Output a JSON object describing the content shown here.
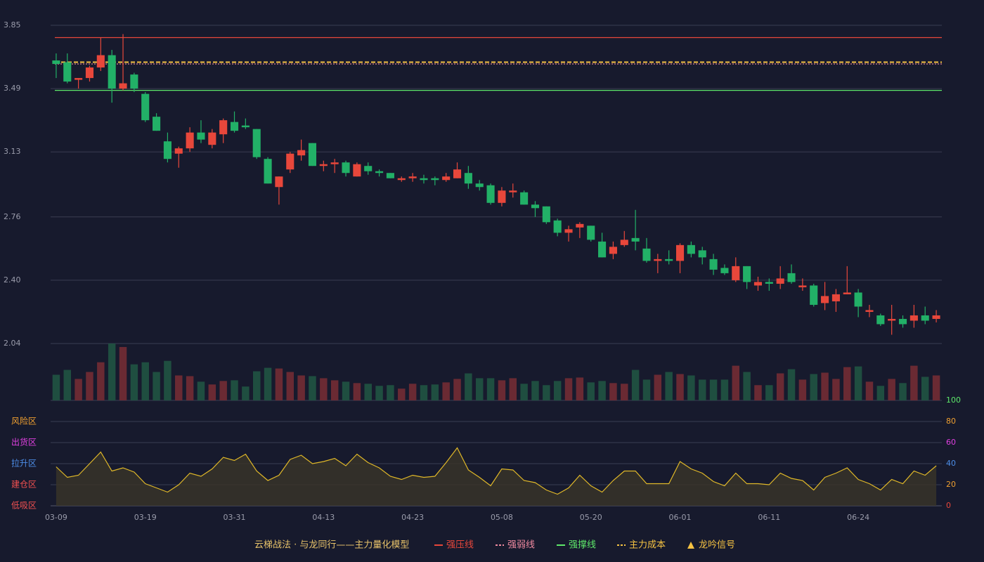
{
  "chart_data": {
    "type": "candlestick",
    "categories": [
      "03-09",
      null,
      null,
      null,
      null,
      null,
      null,
      null,
      "03-19",
      null,
      null,
      null,
      null,
      null,
      null,
      null,
      "03-31",
      null,
      null,
      null,
      null,
      null,
      null,
      null,
      "04-13",
      null,
      null,
      null,
      null,
      null,
      null,
      null,
      "04-23",
      null,
      null,
      null,
      null,
      null,
      null,
      null,
      "05-08",
      null,
      null,
      null,
      null,
      null,
      null,
      null,
      "05-20",
      null,
      null,
      null,
      null,
      null,
      null,
      null,
      "06-01",
      null,
      null,
      null,
      null,
      null,
      null,
      null,
      "06-11",
      null,
      null,
      null,
      null,
      null,
      null,
      null,
      "06-24",
      null,
      null,
      null,
      null,
      null,
      null,
      null
    ],
    "open": [
      3.65,
      3.64,
      3.54,
      3.55,
      3.61,
      3.68,
      3.49,
      3.57,
      3.46,
      3.33,
      3.19,
      3.12,
      3.15,
      3.24,
      3.17,
      3.23,
      3.3,
      3.28,
      3.26,
      3.09,
      2.93,
      3.03,
      3.11,
      3.18,
      3.05,
      3.06,
      3.07,
      2.99,
      3.05,
      3.02,
      3.01,
      2.97,
      2.98,
      2.98,
      2.98,
      2.97,
      2.98,
      3.01,
      2.95,
      2.94,
      2.84,
      2.9,
      2.9,
      2.83,
      2.82,
      2.74,
      2.67,
      2.7,
      2.71,
      2.62,
      2.55,
      2.6,
      2.64,
      2.58,
      2.51,
      2.52,
      2.51,
      2.6,
      2.57,
      2.52,
      2.47,
      2.4,
      2.48,
      2.37,
      2.39,
      2.38,
      2.44,
      2.36,
      2.37,
      2.27,
      2.28,
      2.32,
      2.33,
      2.22,
      2.2,
      2.17,
      2.18,
      2.17,
      2.2,
      2.18
    ],
    "high": [
      3.69,
      3.69,
      3.55,
      3.62,
      3.78,
      3.71,
      3.8,
      3.58,
      3.47,
      3.35,
      3.24,
      3.16,
      3.27,
      3.31,
      3.26,
      3.32,
      3.36,
      3.32,
      3.26,
      3.1,
      2.99,
      3.13,
      3.2,
      3.18,
      3.08,
      3.09,
      3.08,
      3.07,
      3.07,
      3.03,
      3.01,
      2.99,
      3.01,
      3.0,
      2.99,
      3.01,
      3.07,
      3.05,
      2.97,
      2.95,
      2.93,
      2.95,
      2.91,
      2.85,
      2.82,
      2.75,
      2.71,
      2.73,
      2.71,
      2.67,
      2.62,
      2.68,
      2.8,
      2.64,
      2.55,
      2.57,
      2.61,
      2.62,
      2.59,
      2.55,
      2.49,
      2.53,
      2.48,
      2.42,
      2.41,
      2.48,
      2.49,
      2.41,
      2.38,
      2.39,
      2.35,
      2.48,
      2.35,
      2.26,
      2.21,
      2.26,
      2.2,
      2.26,
      2.25,
      2.23
    ],
    "low": [
      3.55,
      3.52,
      3.49,
      3.53,
      3.59,
      3.41,
      3.48,
      3.47,
      3.3,
      3.25,
      3.07,
      3.04,
      3.13,
      3.18,
      3.15,
      3.18,
      3.24,
      3.26,
      3.09,
      2.95,
      2.83,
      3.01,
      3.08,
      3.05,
      3.02,
      3.01,
      2.99,
      2.99,
      3.0,
      2.99,
      2.98,
      2.96,
      2.96,
      2.95,
      2.94,
      2.96,
      2.98,
      2.92,
      2.91,
      2.83,
      2.82,
      2.87,
      2.83,
      2.76,
      2.72,
      2.65,
      2.62,
      2.64,
      2.62,
      2.53,
      2.52,
      2.59,
      2.57,
      2.5,
      2.44,
      2.49,
      2.44,
      2.53,
      2.49,
      2.43,
      2.43,
      2.39,
      2.35,
      2.34,
      2.34,
      2.35,
      2.38,
      2.34,
      2.25,
      2.23,
      2.22,
      2.32,
      2.19,
      2.19,
      2.14,
      2.09,
      2.13,
      2.13,
      2.15,
      2.16
    ],
    "close": [
      3.63,
      3.53,
      3.55,
      3.61,
      3.68,
      3.49,
      3.52,
      3.49,
      3.31,
      3.25,
      3.09,
      3.15,
      3.24,
      3.2,
      3.24,
      3.31,
      3.25,
      3.27,
      3.1,
      2.95,
      2.99,
      3.12,
      3.14,
      3.05,
      3.06,
      3.07,
      3.01,
      3.06,
      3.02,
      3.01,
      2.98,
      2.98,
      2.99,
      2.97,
      2.97,
      2.99,
      3.03,
      2.95,
      2.93,
      2.84,
      2.91,
      2.91,
      2.83,
      2.81,
      2.73,
      2.67,
      2.69,
      2.72,
      2.63,
      2.53,
      2.59,
      2.63,
      2.62,
      2.51,
      2.52,
      2.51,
      2.6,
      2.55,
      2.53,
      2.46,
      2.44,
      2.48,
      2.39,
      2.39,
      2.38,
      2.41,
      2.39,
      2.37,
      2.26,
      2.31,
      2.32,
      2.33,
      2.25,
      2.23,
      2.15,
      2.18,
      2.15,
      2.2,
      2.17,
      2.2
    ],
    "volume": [
      37,
      44,
      31,
      41,
      55,
      82,
      77,
      52,
      55,
      41,
      57,
      36,
      35,
      27,
      23,
      28,
      29,
      20,
      42,
      47,
      46,
      41,
      36,
      35,
      32,
      29,
      27,
      25,
      24,
      21,
      22,
      17,
      24,
      22,
      23,
      26,
      31,
      39,
      32,
      32,
      29,
      32,
      24,
      28,
      22,
      28,
      32,
      33,
      26,
      28,
      25,
      24,
      44,
      30,
      37,
      41,
      38,
      36,
      30,
      30,
      30,
      50,
      41,
      22,
      22,
      39,
      45,
      30,
      38,
      40,
      31,
      48,
      49,
      27,
      21,
      31,
      25,
      50,
      34,
      36
    ],
    "up_color": "#e8473b",
    "down_color": "#22b067",
    "volume_up_color": "#6a2a33",
    "volume_down_color": "#1f4e40",
    "ylim": [
      2.04,
      3.85
    ],
    "yticks": [
      3.85,
      3.49,
      3.13,
      2.76,
      {
        "value": 2.4,
        "label": "2.40"
      },
      2.04
    ],
    "grid": true,
    "lines": [
      {
        "name": "强压线",
        "value": 3.78,
        "color": "#e8473b",
        "style": "solid"
      },
      {
        "name": "强弱线",
        "value": 3.63,
        "color": "#f08aa0",
        "style": "dotted"
      },
      {
        "name": "强撑线",
        "value": 3.48,
        "color": "#5ee86a",
        "style": "solid"
      },
      {
        "name": "主力成本",
        "value": 3.64,
        "color": "#f5c242",
        "style": "dashed"
      }
    ],
    "signal": {
      "name": "龙吟信号",
      "color": "#f5c242"
    },
    "legend_title": "云梯战法 · 与龙同行——主力量化模型",
    "oscillator": {
      "values": [
        37,
        27,
        29,
        40,
        51,
        33,
        36,
        32,
        21,
        17,
        13,
        20,
        31,
        28,
        35,
        46,
        43,
        49,
        33,
        24,
        29,
        44,
        48,
        40,
        42,
        45,
        38,
        49,
        41,
        36,
        28,
        25,
        29,
        27,
        28,
        41,
        55,
        34,
        27,
        19,
        35,
        34,
        24,
        22,
        15,
        11,
        17,
        29,
        19,
        13,
        24,
        33,
        33,
        21,
        21,
        21,
        42,
        35,
        31,
        23,
        19,
        31,
        21,
        21,
        20,
        31,
        26,
        24,
        15,
        27,
        31,
        36,
        25,
        21,
        15,
        25,
        21,
        33,
        29,
        38
      ],
      "color": "#e0b828",
      "fill": "#3a3428",
      "ylim": [
        0,
        100
      ],
      "yticks": [
        0,
        20,
        40,
        60,
        80,
        100
      ],
      "ytick_colors": [
        "#e8473b",
        "#f0a030",
        "#4d8ee8",
        "#e040e0",
        "#f0a030",
        "#5ee86a"
      ],
      "zones": [
        {
          "name": "风险区",
          "value": 80,
          "color": "#f0a030"
        },
        {
          "name": "出货区",
          "value": 60,
          "color": "#e040e0"
        },
        {
          "name": "拉升区",
          "value": 40,
          "color": "#4d8ee8"
        },
        {
          "name": "建仓区",
          "value": 20,
          "color": "#f05050"
        },
        {
          "name": "低吸区",
          "value": 0,
          "color": "#f05050"
        }
      ]
    }
  }
}
